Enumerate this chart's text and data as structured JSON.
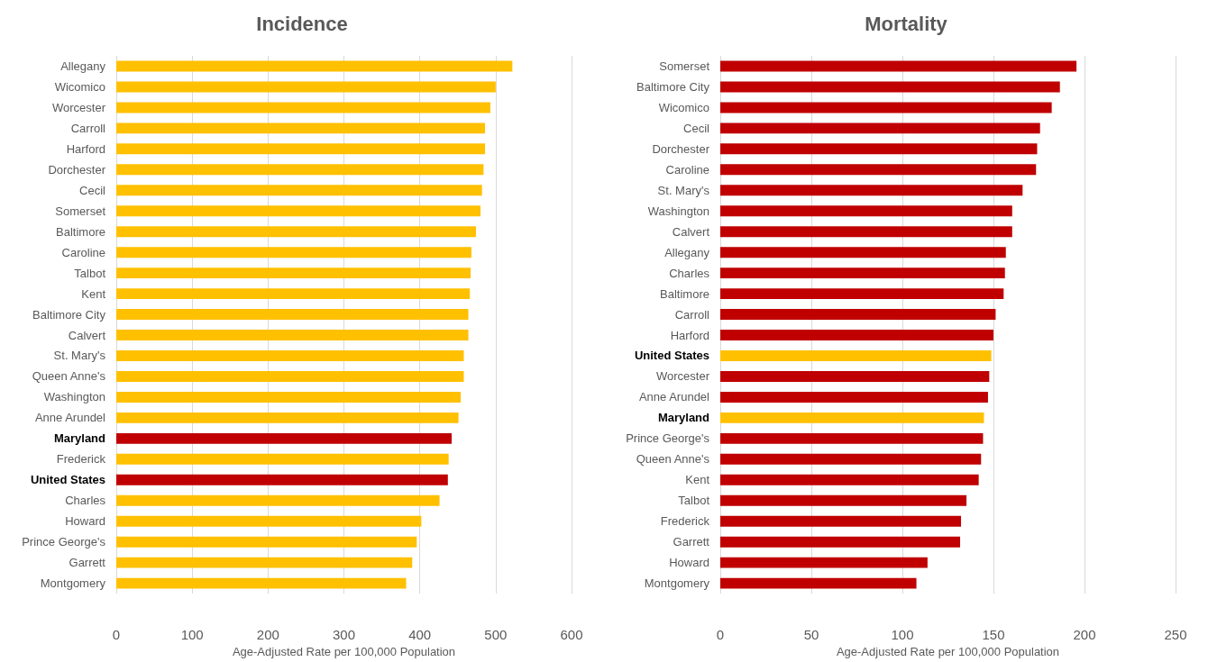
{
  "chart_data": [
    {
      "type": "bar",
      "orientation": "horizontal",
      "title": "Incidence",
      "xlabel": "Age-Adjusted Rate per 100,000 Population",
      "categories": [
        "Allegany",
        "Wicomico",
        "Worcester",
        "Carroll",
        "Harford",
        "Dorchester",
        "Cecil",
        "Somerset",
        "Baltimore",
        "Caroline",
        "Talbot",
        "Kent",
        "Baltimore City",
        "Calvert",
        "St. Mary's",
        "Queen Anne's",
        "Washington",
        "Anne Arundel",
        "Maryland",
        "Frederick",
        "United States",
        "Charles",
        "Howard",
        "Prince George's",
        "Garrett",
        "Montgomery"
      ],
      "values": [
        522,
        500,
        493,
        486,
        486,
        484,
        482,
        480,
        474,
        468,
        467,
        466,
        464,
        464,
        458,
        458,
        454,
        451,
        442,
        438,
        437,
        426,
        402,
        396,
        390,
        382
      ],
      "colors": [
        "#ffc000",
        "#ffc000",
        "#ffc000",
        "#ffc000",
        "#ffc000",
        "#ffc000",
        "#ffc000",
        "#ffc000",
        "#ffc000",
        "#ffc000",
        "#ffc000",
        "#ffc000",
        "#ffc000",
        "#ffc000",
        "#ffc000",
        "#ffc000",
        "#ffc000",
        "#ffc000",
        "#c00000",
        "#ffc000",
        "#c00000",
        "#ffc000",
        "#ffc000",
        "#ffc000",
        "#ffc000",
        "#ffc000"
      ],
      "xlim": [
        0,
        600
      ],
      "xticks": [
        0,
        100,
        200,
        300,
        400,
        500,
        600
      ],
      "grid": "x"
    },
    {
      "type": "bar",
      "orientation": "horizontal",
      "title": "Mortality",
      "xlabel": "Age-Adjusted Rate per 100,000 Population",
      "categories": [
        "Somerset",
        "Baltimore City",
        "Wicomico",
        "Cecil",
        "Dorchester",
        "Caroline",
        "St. Mary's",
        "Washington",
        "Calvert",
        "Allegany",
        "Charles",
        "Baltimore",
        "Carroll",
        "Harford",
        "United States",
        "Worcester",
        "Anne Arundel",
        "Maryland",
        "Prince George's",
        "Queen Anne's",
        "Kent",
        "Talbot",
        "Frederick",
        "Garrett",
        "Howard",
        "Montgomery"
      ],
      "values": [
        195.6,
        186.5,
        182,
        175.6,
        174,
        173.4,
        166,
        160.3,
        160.3,
        156.8,
        156.3,
        155.6,
        151.2,
        150,
        148.8,
        147.7,
        147,
        144.8,
        144.3,
        143.2,
        141.9,
        135.2,
        132.2,
        131.7,
        113.8,
        107.7
      ],
      "colors": [
        "#c00000",
        "#c00000",
        "#c00000",
        "#c00000",
        "#c00000",
        "#c00000",
        "#c00000",
        "#c00000",
        "#c00000",
        "#c00000",
        "#c00000",
        "#c00000",
        "#c00000",
        "#c00000",
        "#ffc000",
        "#c00000",
        "#c00000",
        "#ffc000",
        "#c00000",
        "#c00000",
        "#c00000",
        "#c00000",
        "#c00000",
        "#c00000",
        "#c00000",
        "#c00000"
      ],
      "xlim": [
        0,
        250
      ],
      "xticks": [
        0,
        50,
        100,
        150,
        200,
        250
      ],
      "grid": "x"
    }
  ]
}
